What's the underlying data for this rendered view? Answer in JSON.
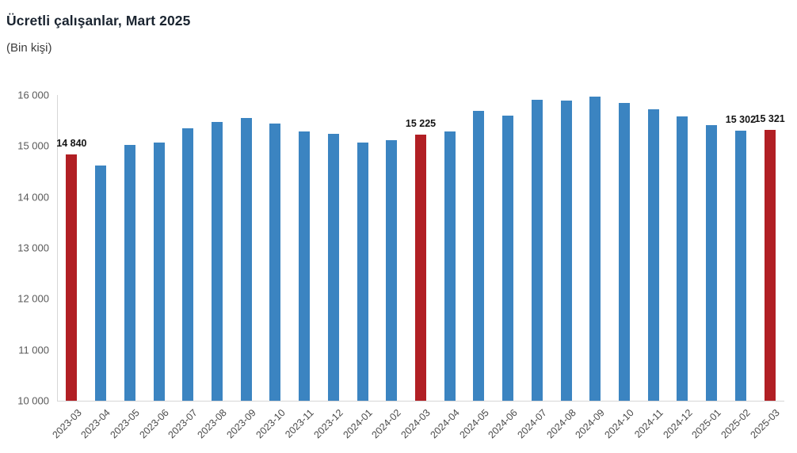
{
  "title": "Ücretli çalışanlar, Mart 2025",
  "subtitle": "(Bin kişi)",
  "colors": {
    "bar": "#3b84c1",
    "highlight": "#b11f24",
    "axis": "#d6d6d6",
    "tick_text": "#595959",
    "data_label_text": "#141414"
  },
  "chart_data": {
    "type": "bar",
    "title": "Ücretli çalışanlar, Mart 2025",
    "subtitle": "(Bin kişi)",
    "xlabel": "",
    "ylabel": "Bin kişi",
    "ylim": [
      10000,
      16000
    ],
    "grid": false,
    "legend": false,
    "categories": [
      "2023-03",
      "2023-04",
      "2023-05",
      "2023-06",
      "2023-07",
      "2023-08",
      "2023-09",
      "2023-10",
      "2023-11",
      "2023-12",
      "2024-01",
      "2024-02",
      "2024-03",
      "2024-04",
      "2024-05",
      "2024-06",
      "2024-07",
      "2024-08",
      "2024-09",
      "2024-10",
      "2024-11",
      "2024-12",
      "2025-01",
      "2025-02",
      "2025-03"
    ],
    "values": [
      14840,
      14618,
      15013,
      15065,
      15352,
      15472,
      15544,
      15434,
      15288,
      15235,
      15063,
      15114,
      15225,
      15278,
      15688,
      15594,
      15899,
      15891,
      15968,
      15845,
      15724,
      15577,
      15416,
      15302,
      15321
    ],
    "highlight_indices": [
      0,
      12,
      24
    ],
    "labeled_points": [
      {
        "index": 0,
        "label": "14 840"
      },
      {
        "index": 12,
        "label": "15 225"
      },
      {
        "index": 23,
        "label": "15 302"
      },
      {
        "index": 24,
        "label": "15 321"
      }
    ],
    "ytick_values": [
      10000,
      11000,
      12000,
      13000,
      14000,
      15000,
      16000
    ],
    "ytick_labels": [
      "10 000",
      "11 000",
      "12 000",
      "13 000",
      "14 000",
      "15 000",
      "16 000"
    ]
  }
}
